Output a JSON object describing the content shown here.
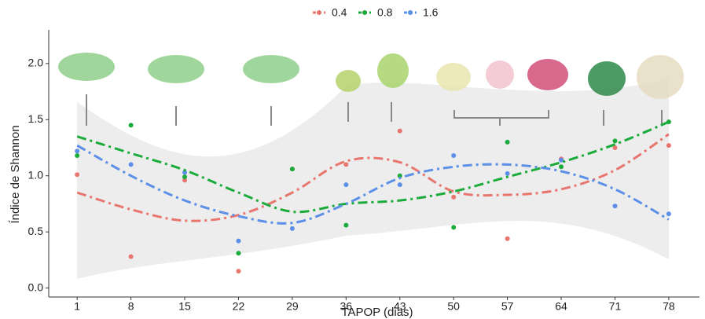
{
  "chart_data": {
    "type": "scatter",
    "xlabel": "TAPOP (dias)",
    "ylabel": "Índice de Shannon",
    "x": [
      1,
      8,
      15,
      22,
      29,
      36,
      43,
      50,
      57,
      64,
      71,
      78
    ],
    "xlim": [
      -2.7,
      82
    ],
    "ylim": [
      -0.08,
      2.3
    ],
    "xticks": [
      1,
      8,
      15,
      22,
      29,
      36,
      43,
      50,
      57,
      64,
      71,
      78
    ],
    "yticks": [
      {
        "value": 0,
        "label": "0.0"
      },
      0.5,
      {
        "value": 1,
        "label": "1.0"
      },
      1.5,
      {
        "value": 2,
        "label": "2.0"
      }
    ],
    "series": [
      {
        "name": "0.4",
        "color": "#e8766f",
        "values": [
          1.01,
          0.28,
          0.96,
          0.15,
          1.06,
          1.1,
          1.4,
          0.81,
          0.44,
          1.15,
          1.25,
          1.27
        ],
        "fit": [
          0.85,
          0.7,
          0.6,
          0.65,
          0.85,
          1.13,
          1.12,
          0.86,
          0.83,
          0.88,
          1.05,
          1.37
        ]
      },
      {
        "name": "0.8",
        "color": "#1aab3b",
        "values": [
          1.18,
          1.45,
          0.99,
          0.31,
          1.06,
          0.56,
          1.0,
          0.54,
          1.3,
          1.08,
          1.31,
          1.48
        ],
        "fit": [
          1.35,
          1.2,
          1.05,
          0.85,
          0.68,
          0.75,
          0.78,
          0.86,
          0.99,
          1.12,
          1.28,
          1.48
        ]
      },
      {
        "name": "1.6",
        "color": "#5b8fe8",
        "values": [
          1.22,
          1.1,
          1.03,
          0.42,
          0.53,
          0.92,
          0.92,
          1.18,
          1.02,
          1.14,
          0.73,
          0.66
        ],
        "fit": [
          1.27,
          1.0,
          0.78,
          0.64,
          0.58,
          0.75,
          0.98,
          1.08,
          1.1,
          1.04,
          0.88,
          0.61
        ]
      }
    ]
  }
}
